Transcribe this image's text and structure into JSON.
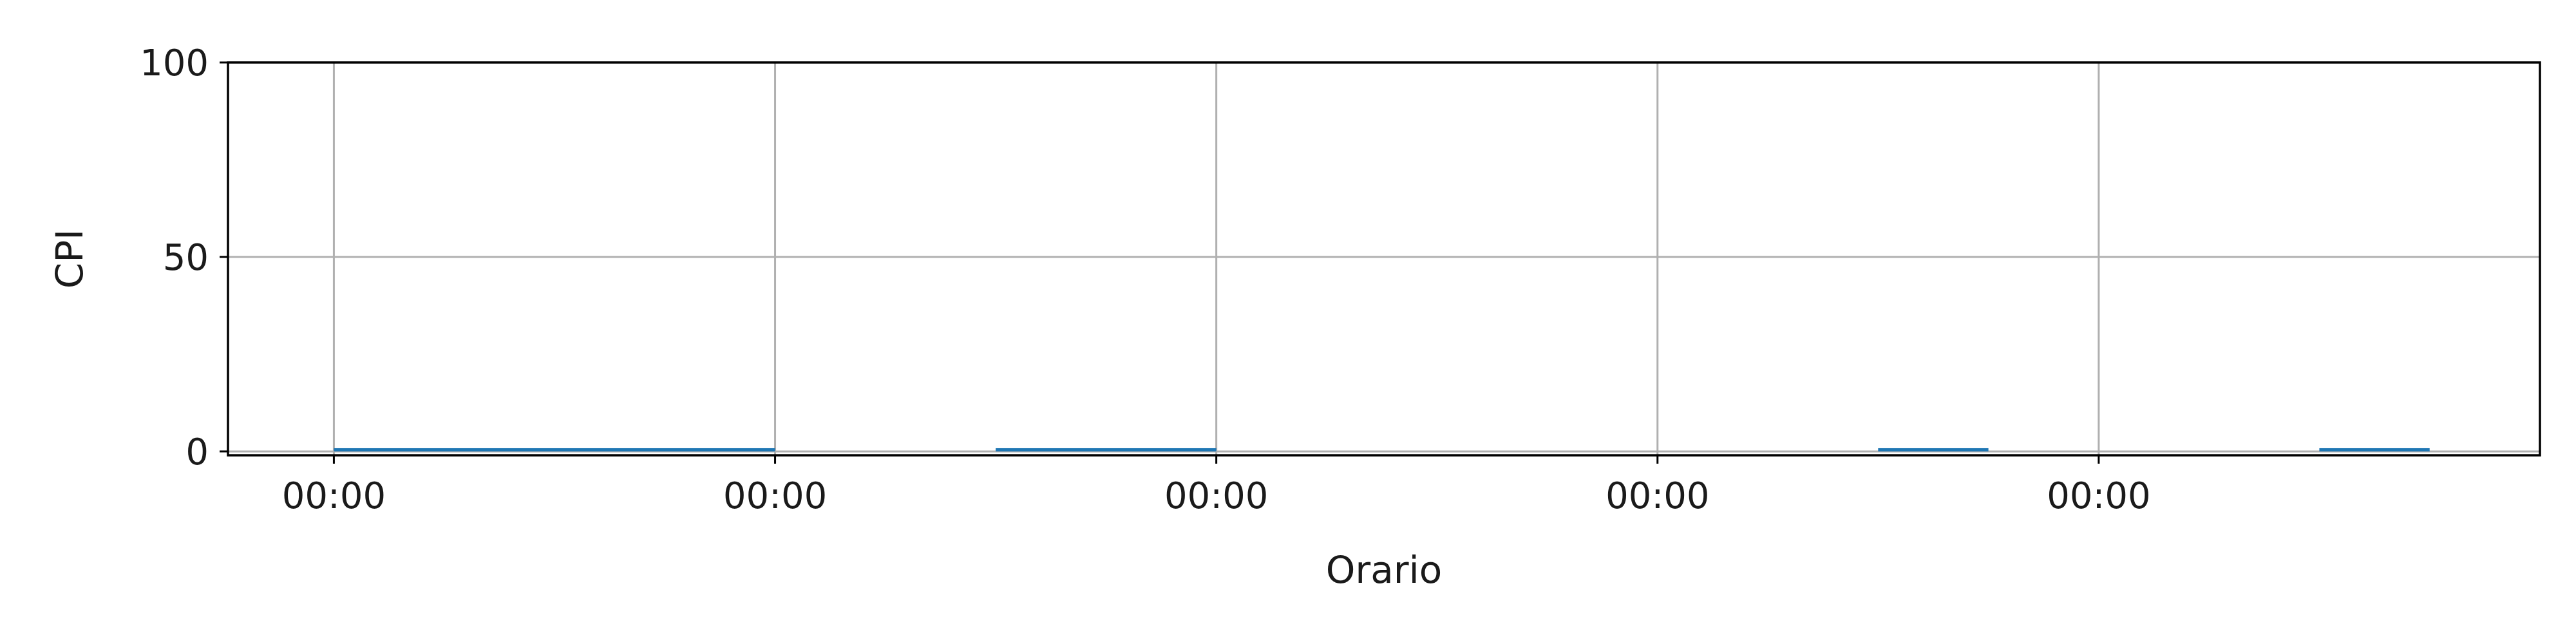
{
  "chart_data": {
    "type": "bar",
    "title": "",
    "xlabel": "Orario",
    "ylabel": "CPI",
    "xlim": [
      -0.24,
      5.0
    ],
    "ylim": [
      -1,
      100
    ],
    "x_ticks": [
      {
        "pos": 0,
        "label": "00:00"
      },
      {
        "pos": 1,
        "label": "00:00"
      },
      {
        "pos": 2,
        "label": "00:00"
      },
      {
        "pos": 3,
        "label": "00:00"
      },
      {
        "pos": 4,
        "label": "00:00"
      }
    ],
    "y_ticks": [
      0,
      50,
      100
    ],
    "grid": true,
    "legend": "none",
    "bar_color": "#1f77b4",
    "bars": [
      {
        "start": 0.0,
        "end": 1.0,
        "value": 0.5
      },
      {
        "start": 1.5,
        "end": 2.0,
        "value": 0.5
      },
      {
        "start": 3.5,
        "end": 3.75,
        "value": 0.5
      },
      {
        "start": 4.5,
        "end": 4.75,
        "value": 0.5
      }
    ]
  }
}
